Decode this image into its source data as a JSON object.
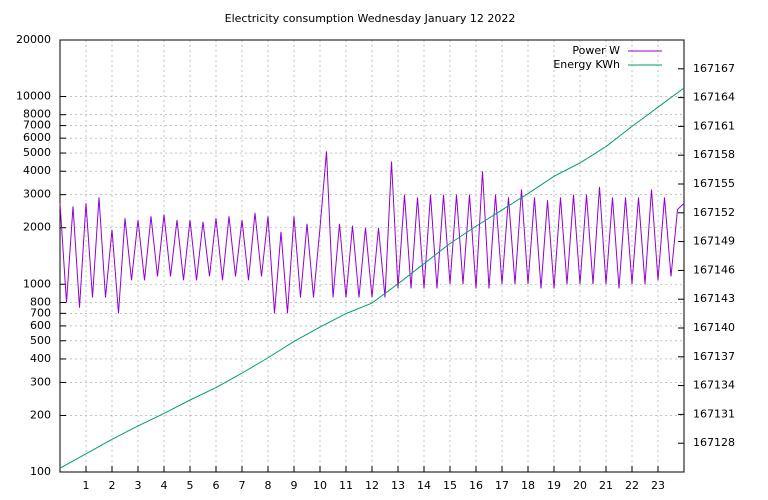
{
  "chart_data": {
    "type": "line",
    "title": "Electricity consumption Wednesday January 12 2022",
    "xlim": [
      0,
      24
    ],
    "xticks": [
      1,
      2,
      3,
      4,
      5,
      6,
      7,
      8,
      9,
      10,
      11,
      12,
      13,
      14,
      15,
      16,
      17,
      18,
      19,
      20,
      21,
      22,
      23
    ],
    "ylim": [
      100,
      20000
    ],
    "yticks": [
      100,
      200,
      300,
      400,
      500,
      600,
      700,
      800,
      1000,
      2000,
      3000,
      4000,
      5000,
      6000,
      7000,
      8000,
      10000,
      20000
    ],
    "y_log": true,
    "y2lim": [
      167125,
      167170
    ],
    "y2ticks": [
      167128,
      167131,
      167134,
      167137,
      167140,
      167143,
      167146,
      167149,
      167152,
      167155,
      167158,
      167161,
      167164,
      167167
    ],
    "grid": true,
    "legend": "top-right",
    "series": [
      {
        "name": "Power W",
        "color": "#9400d3",
        "x": [
          0,
          0.25,
          0.5,
          0.75,
          1,
          1.25,
          1.5,
          1.75,
          2,
          2.25,
          2.5,
          2.75,
          3,
          3.25,
          3.5,
          3.75,
          4,
          4.25,
          4.5,
          4.75,
          5,
          5.25,
          5.5,
          5.75,
          6,
          6.25,
          6.5,
          6.75,
          7,
          7.25,
          7.5,
          7.75,
          8,
          8.25,
          8.5,
          8.75,
          9,
          9.25,
          9.5,
          9.75,
          10,
          10.25,
          10.5,
          10.75,
          11,
          11.25,
          11.5,
          11.75,
          12,
          12.25,
          12.5,
          12.75,
          13,
          13.25,
          13.5,
          13.75,
          14,
          14.25,
          14.5,
          14.75,
          15,
          15.25,
          15.5,
          15.75,
          16,
          16.25,
          16.5,
          16.75,
          17,
          17.25,
          17.5,
          17.75,
          18,
          18.25,
          18.5,
          18.75,
          19,
          19.25,
          19.5,
          19.75,
          20,
          20.25,
          20.5,
          20.75,
          21,
          21.25,
          21.5,
          21.75,
          22,
          22.25,
          22.5,
          22.75,
          23,
          23.25,
          23.5,
          23.75,
          24
        ],
        "values": [
          2700,
          800,
          2600,
          750,
          2700,
          850,
          2900,
          850,
          1950,
          700,
          2250,
          1050,
          2200,
          1050,
          2300,
          1100,
          2350,
          1100,
          2200,
          1050,
          2200,
          1050,
          2150,
          1100,
          2250,
          1050,
          2300,
          1100,
          2200,
          1050,
          2400,
          1100,
          2300,
          700,
          1900,
          700,
          2300,
          850,
          2100,
          850,
          2000,
          5100,
          850,
          2100,
          850,
          2050,
          850,
          2000,
          850,
          2000,
          850,
          4500,
          950,
          3000,
          950,
          2900,
          950,
          3000,
          950,
          3000,
          1000,
          3000,
          1000,
          3000,
          950,
          4000,
          950,
          3000,
          1000,
          2900,
          1000,
          3200,
          1000,
          2900,
          950,
          2800,
          950,
          2900,
          1000,
          3000,
          1000,
          3000,
          1000,
          3300,
          1000,
          2900,
          950,
          2900,
          1000,
          2900,
          1000,
          3200,
          1050,
          2900,
          1100,
          2500,
          2700
        ]
      },
      {
        "name": "Energy KWh",
        "color": "#009e73",
        "axis": "y2",
        "x": [
          0,
          1,
          2,
          3,
          4,
          5,
          6,
          7,
          8,
          9,
          10,
          11,
          12,
          13,
          14,
          15,
          16,
          17,
          18,
          19,
          20,
          21,
          22,
          23,
          24
        ],
        "values": [
          167125.4,
          167126.9,
          167128.4,
          167129.8,
          167131.1,
          167132.5,
          167133.8,
          167135.3,
          167136.9,
          167138.6,
          167140.1,
          167141.5,
          167142.6,
          167144.6,
          167146.7,
          167148.8,
          167150.6,
          167152.3,
          167154.0,
          167155.8,
          167157.2,
          167158.9,
          167161.0,
          167163.0,
          167165.0
        ]
      }
    ]
  }
}
